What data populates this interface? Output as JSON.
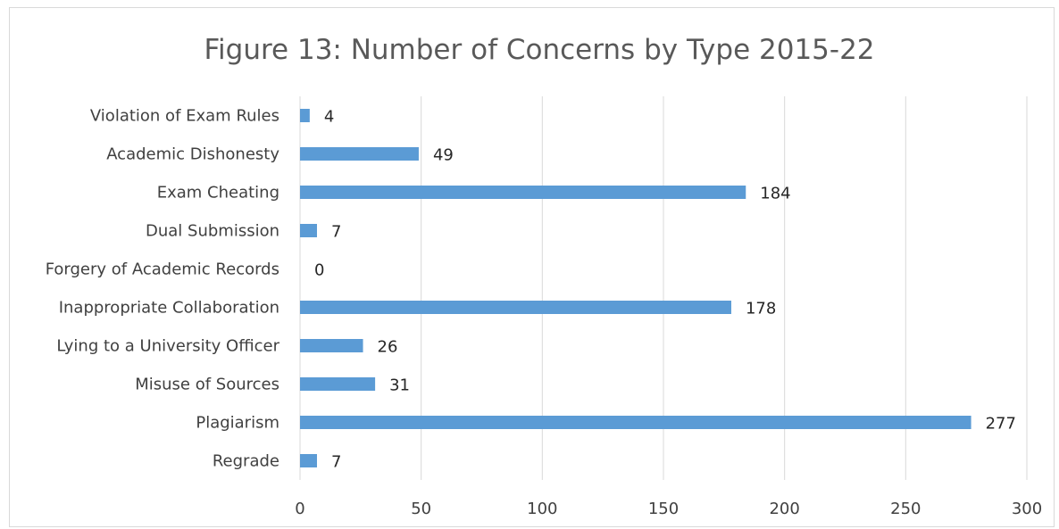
{
  "chart_data": {
    "type": "bar",
    "orientation": "horizontal",
    "title": "Figure 13: Number of Concerns by Type 2015-22",
    "categories": [
      "Violation of Exam Rules",
      "Academic Dishonesty",
      "Exam Cheating",
      "Dual Submission",
      "Forgery of Academic Records",
      "Inappropriate Collaboration",
      "Lying to a University Officer",
      "Misuse of Sources",
      "Plagiarism",
      "Regrade"
    ],
    "values": [
      4,
      49,
      184,
      7,
      0,
      178,
      26,
      31,
      277,
      7
    ],
    "xlim": [
      0,
      300
    ],
    "xticks": [
      0,
      50,
      100,
      150,
      200,
      250,
      300
    ],
    "grid": true,
    "legend": "none",
    "bar_color": "#5b9bd5",
    "grid_color": "#d9d9d9"
  }
}
